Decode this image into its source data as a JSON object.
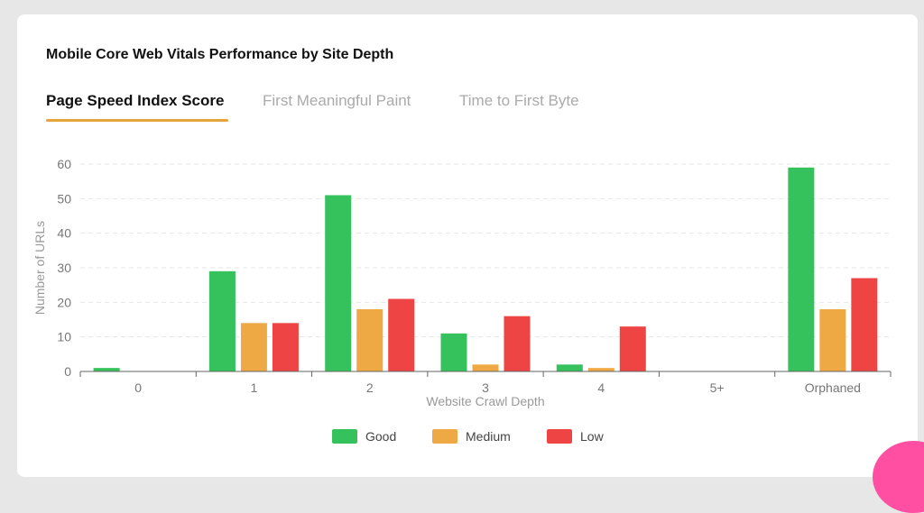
{
  "card": {
    "title": "Mobile Core Web Vitals Performance by Site Depth"
  },
  "tabs": [
    {
      "label": "Page Speed Index Score",
      "active": true
    },
    {
      "label": "First Meaningful Paint",
      "active": false
    },
    {
      "label": "Time to First Byte",
      "active": false
    }
  ],
  "colors": {
    "good": "#35c15c",
    "medium": "#efa944",
    "low": "#ef4444",
    "tab_underline": "#e6a33a"
  },
  "chart_data": {
    "type": "bar",
    "categories": [
      "0",
      "1",
      "2",
      "3",
      "4",
      "5+",
      "Orphaned"
    ],
    "series": [
      {
        "name": "Good",
        "color": "#35c15c",
        "values": [
          1,
          29,
          51,
          11,
          2,
          0,
          59
        ]
      },
      {
        "name": "Medium",
        "color": "#efa944",
        "values": [
          0,
          14,
          18,
          2,
          1,
          0,
          18
        ]
      },
      {
        "name": "Low",
        "color": "#ef4444",
        "values": [
          0,
          14,
          21,
          16,
          13,
          0,
          27
        ]
      }
    ],
    "xlabel": "Website Crawl Depth",
    "ylabel": "Number of URLs",
    "ylim": [
      0,
      60
    ],
    "yticks": [
      0,
      10,
      20,
      30,
      40,
      50,
      60
    ],
    "grid": true,
    "legend_position": "bottom-center"
  }
}
